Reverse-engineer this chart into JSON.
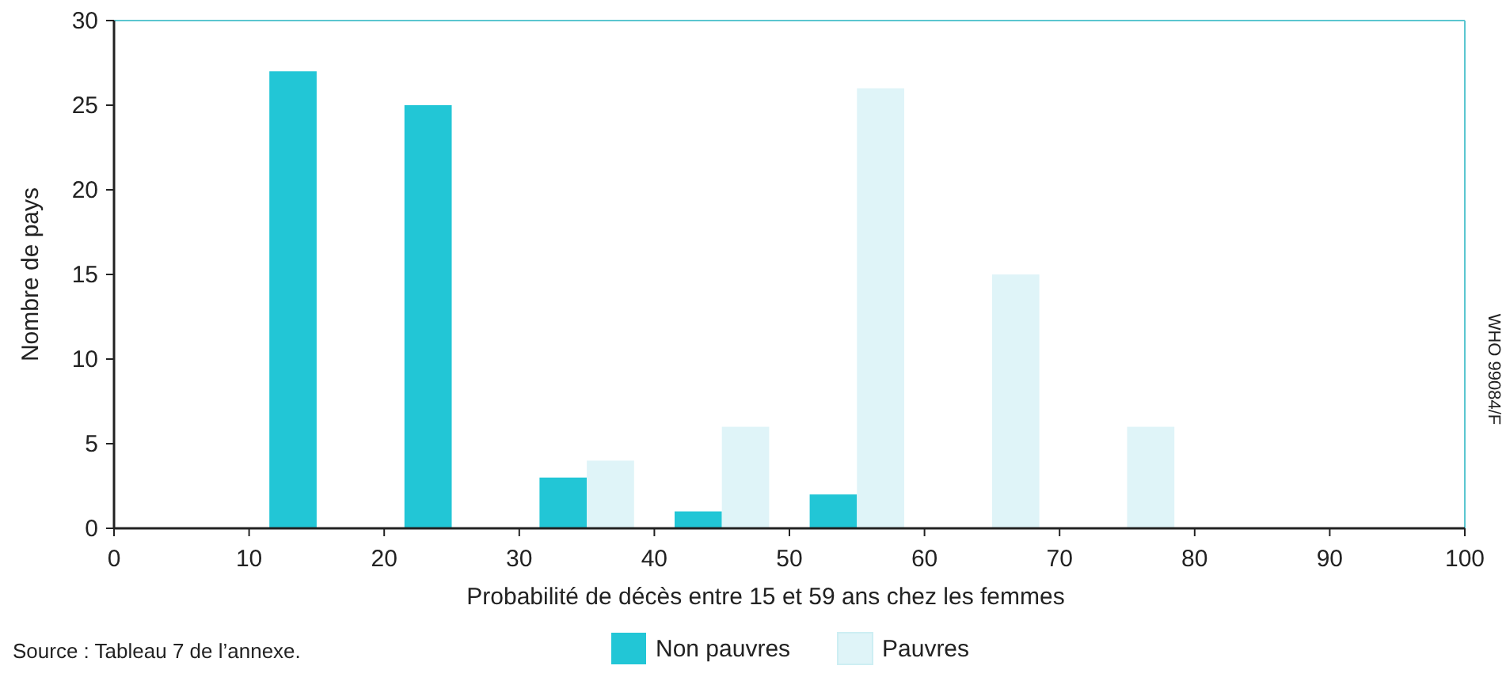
{
  "chart_data": {
    "type": "histogram",
    "xlabel": "Probabilité de décès entre 15 et 59 ans chez les femmes",
    "ylabel": "Nombre de pays",
    "bins": [
      0,
      10,
      20,
      30,
      40,
      50,
      60,
      70,
      80,
      90,
      100
    ],
    "series": [
      {
        "name": "Non pauvres",
        "color": "#22c6d6",
        "values": [
          0,
          27,
          25,
          3,
          1,
          2,
          0,
          0,
          0,
          0
        ]
      },
      {
        "name": "Pauvres",
        "color": "#dff4f8",
        "values": [
          0,
          0,
          0,
          4,
          6,
          26,
          15,
          6,
          0,
          0
        ]
      }
    ],
    "xlim": [
      0,
      100
    ],
    "xticks": [
      0,
      10,
      20,
      30,
      40,
      50,
      60,
      70,
      80,
      90,
      100
    ],
    "ylim": [
      0,
      30
    ],
    "yticks": [
      0,
      5,
      10,
      15,
      20,
      25,
      30
    ],
    "grid": false,
    "legend": "bottom",
    "annotations": [
      "Source : Tableau 7 de l’annexe.",
      "WHO 99084/F"
    ]
  }
}
